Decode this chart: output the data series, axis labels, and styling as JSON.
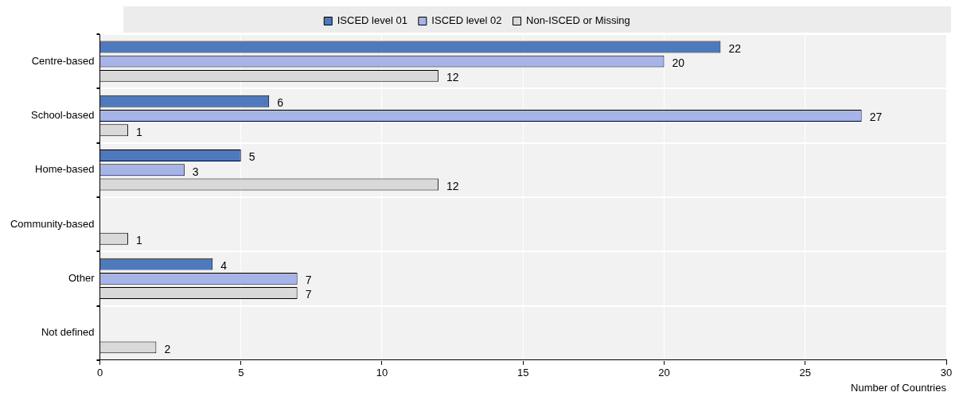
{
  "chart_data": {
    "type": "bar",
    "orientation": "horizontal",
    "xlabel": "Number of Countries",
    "categories": [
      "Centre-based",
      "School-based",
      "Home-based",
      "Community-based",
      "Other",
      "Not defined"
    ],
    "series": [
      {
        "name": "ISCED level 01",
        "color": "#4e79bd",
        "values": [
          22,
          6,
          5,
          null,
          4,
          null
        ]
      },
      {
        "name": "ISCED level 02",
        "color": "#a7b4e8",
        "values": [
          20,
          27,
          3,
          null,
          7,
          null
        ]
      },
      {
        "name": "Non-ISCED or Missing",
        "color": "#d9d9d9",
        "values": [
          12,
          1,
          12,
          1,
          7,
          2
        ]
      }
    ],
    "xlim": [
      0,
      30
    ],
    "xticks": [
      0,
      5,
      10,
      15,
      20,
      25,
      30
    ],
    "grid": true,
    "legend": "top",
    "data_labels": true
  }
}
